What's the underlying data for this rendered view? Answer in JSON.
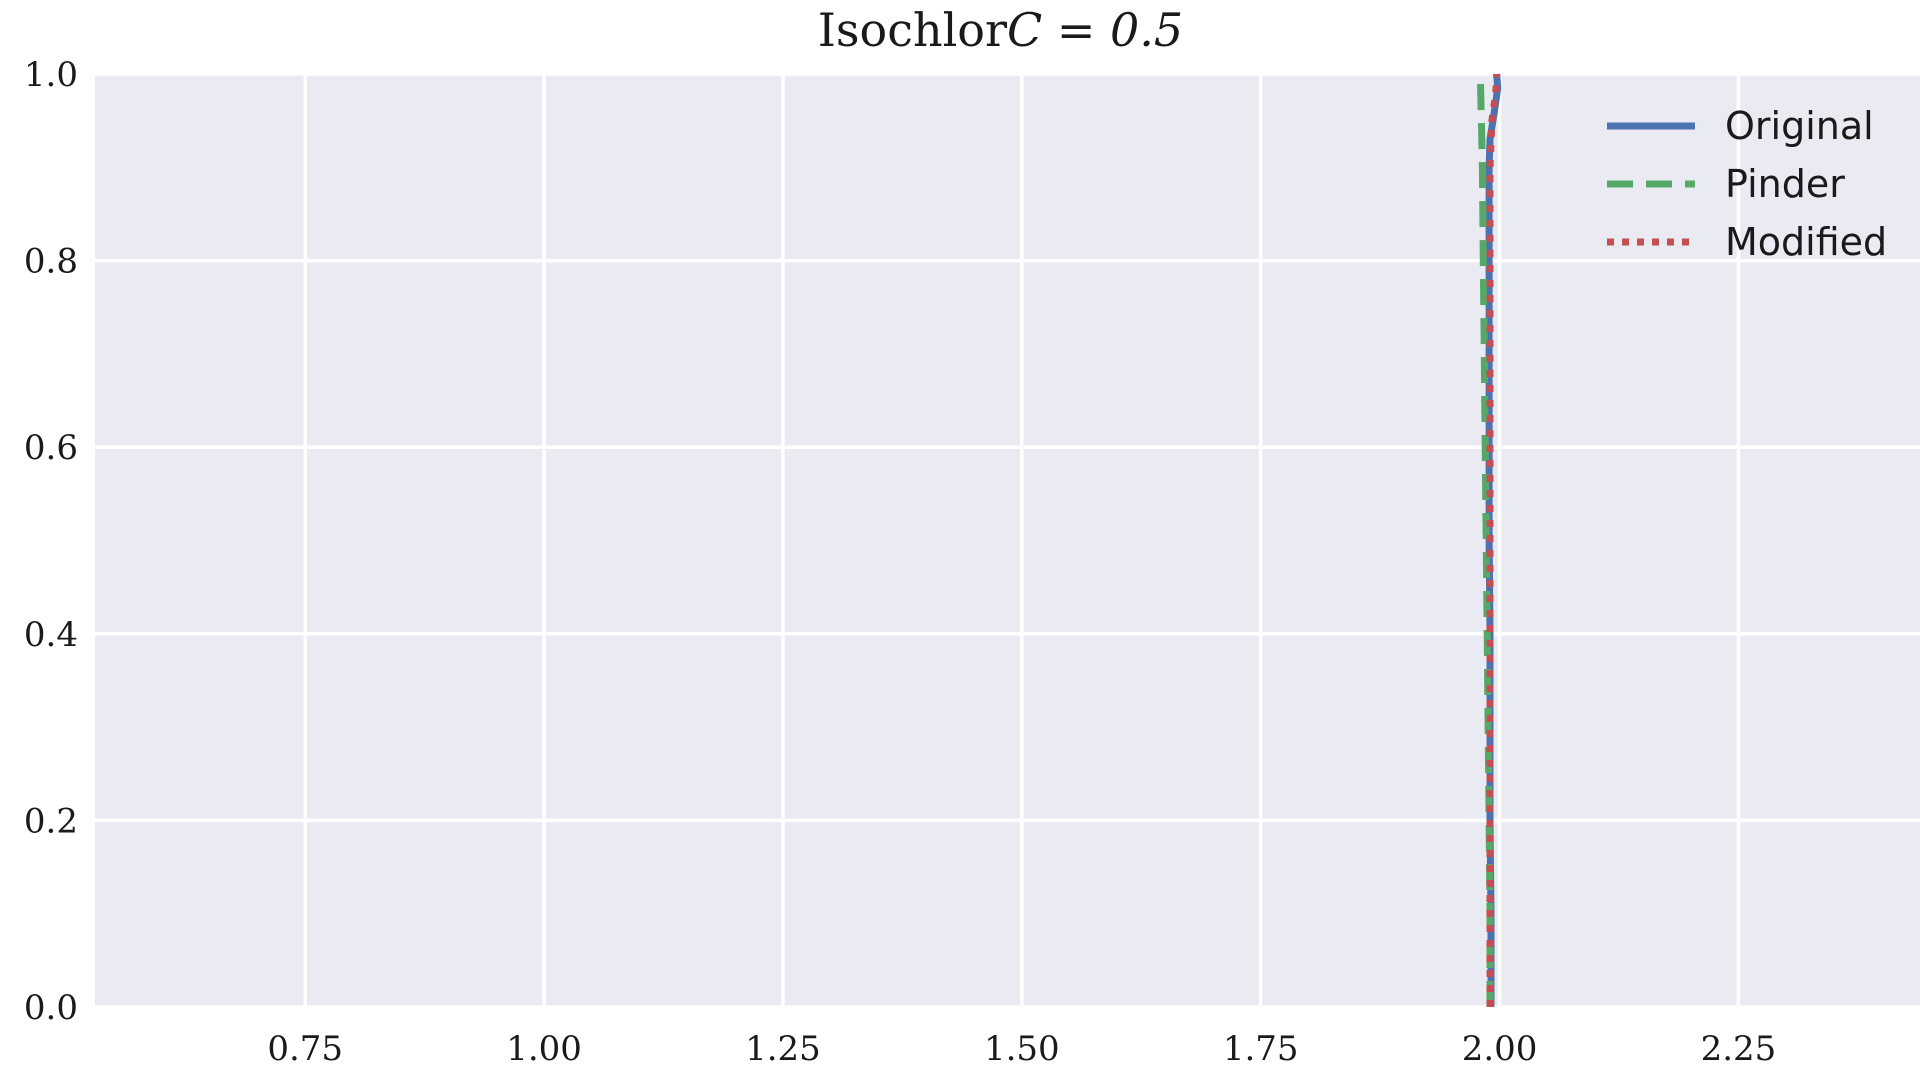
{
  "chart_data": {
    "type": "line",
    "title": "Isochlor C = 0.5",
    "xlabel": "",
    "ylabel": "",
    "xlim": [
      0.53,
      2.44
    ],
    "ylim": [
      0.0,
      1.0
    ],
    "x_ticks": [
      0.75,
      1.0,
      1.25,
      1.5,
      1.75,
      2.0,
      2.25
    ],
    "x_tick_labels": [
      "0.75",
      "1.00",
      "1.25",
      "1.50",
      "1.75",
      "2.00",
      "2.25"
    ],
    "y_ticks": [
      0.0,
      0.2,
      0.4,
      0.6,
      0.8,
      1.0
    ],
    "y_tick_labels": [
      "0.0",
      "0.2",
      "0.4",
      "0.6",
      "0.8",
      "1.0"
    ],
    "grid": true,
    "background_color": "#eaeaf2",
    "grid_color": "#ffffff",
    "legend_position": "top-right",
    "series": [
      {
        "name": "Original",
        "color": "#4c72b0",
        "style": "solid",
        "points": [
          [
            1.991,
            0.0
          ],
          [
            1.991,
            0.1
          ],
          [
            1.99,
            0.2
          ],
          [
            1.99,
            0.3
          ],
          [
            1.99,
            0.4
          ],
          [
            1.989,
            0.5
          ],
          [
            1.989,
            0.6
          ],
          [
            1.989,
            0.7
          ],
          [
            1.989,
            0.8
          ],
          [
            1.989,
            0.9
          ],
          [
            1.99,
            0.93
          ],
          [
            1.993,
            0.95
          ],
          [
            1.996,
            0.97
          ],
          [
            1.998,
            0.985
          ],
          [
            1.997,
            1.0
          ]
        ]
      },
      {
        "name": "Pinder",
        "color": "#55a868",
        "style": "dashed",
        "points": [
          [
            1.99,
            0.0
          ],
          [
            1.99,
            0.1
          ],
          [
            1.989,
            0.2
          ],
          [
            1.988,
            0.3
          ],
          [
            1.987,
            0.4
          ],
          [
            1.986,
            0.5
          ],
          [
            1.985,
            0.6
          ],
          [
            1.984,
            0.7
          ],
          [
            1.983,
            0.8
          ],
          [
            1.982,
            0.9
          ],
          [
            1.981,
            0.95
          ],
          [
            1.98,
            0.99
          ]
        ]
      },
      {
        "name": "Modified",
        "color": "#c44e52",
        "style": "dotted",
        "points": [
          [
            1.99,
            0.0
          ],
          [
            1.99,
            0.1
          ],
          [
            1.99,
            0.2
          ],
          [
            1.99,
            0.3
          ],
          [
            1.99,
            0.4
          ],
          [
            1.99,
            0.5
          ],
          [
            1.99,
            0.6
          ],
          [
            1.99,
            0.7
          ],
          [
            1.99,
            0.8
          ],
          [
            1.99,
            0.9
          ],
          [
            1.992,
            0.95
          ],
          [
            1.996,
            0.98
          ],
          [
            1.997,
            1.0
          ]
        ]
      }
    ]
  }
}
